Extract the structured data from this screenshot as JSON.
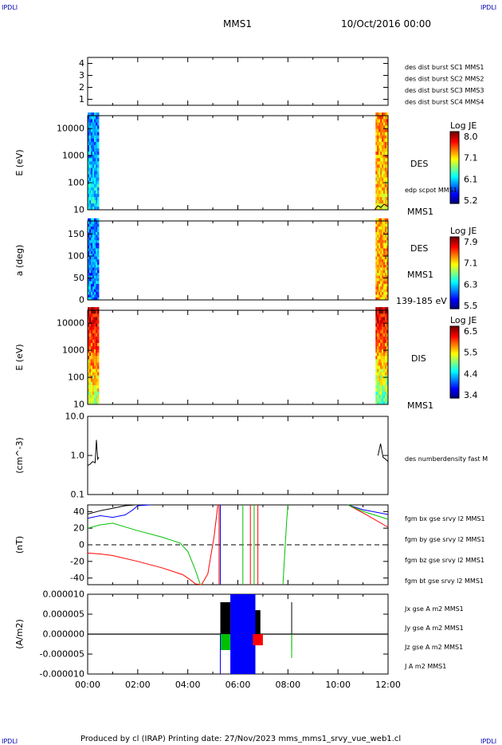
{
  "header": {
    "corner_label": "IPDLI",
    "title": "MMS1",
    "date": "10/Oct/2016 00:00"
  },
  "footer": {
    "credit": "Produced by cl (IRAP)   Printing date: 27/Nov/2023   mms_mms1_srvy_vue_web1.cl"
  },
  "colors": {
    "blue": "#0000ff",
    "magenta": "#ff00ff",
    "red": "#ff0000",
    "green": "#00c000",
    "black": "#000000"
  },
  "time_axis": {
    "ticks": [
      "00:00",
      "02:00",
      "04:00",
      "06:00",
      "08:00",
      "10:00",
      "12:00"
    ],
    "range_hours": [
      0,
      12
    ]
  },
  "chart_data": [
    {
      "type": "line",
      "title": "",
      "ylabel": "",
      "ylim": [
        0.5,
        4.5
      ],
      "yticks": [
        "1",
        "2",
        "3",
        "4"
      ],
      "legend": [
        {
          "label": "des dist burst SC1 MMS1",
          "color": "#0000ff"
        },
        {
          "label": "des dist burst SC2 MMS2",
          "color": "#ff00ff"
        },
        {
          "label": "des dist burst SC3 MMS3",
          "color": "#ff0000"
        },
        {
          "label": "des dist burst SC4 MMS4",
          "color": "#00c000"
        }
      ],
      "series": []
    },
    {
      "type": "heatmap",
      "ylabel": "E (eV)",
      "yscale": "log",
      "ylim": [
        10,
        30000
      ],
      "yticks": [
        "10",
        "100",
        "1000",
        "10000"
      ],
      "instrument": "DES",
      "overlay_label": "edp scpot MMS1",
      "spacecraft": "MMS1",
      "colorbar": {
        "title": "Log JE",
        "ticks": [
          "8.0",
          "7.1",
          "6.1",
          "5.2"
        ],
        "range": [
          5.2,
          8.0
        ]
      },
      "data_intervals_hours": [
        [
          0.0,
          0.45
        ],
        [
          11.5,
          12.0
        ]
      ]
    },
    {
      "type": "heatmap",
      "ylabel": "a (deg)",
      "ylim": [
        0,
        180
      ],
      "yticks": [
        "0",
        "50",
        "100",
        "150"
      ],
      "instrument": "DES",
      "spacecraft": "MMS1",
      "energy_range": "139-185 eV",
      "colorbar": {
        "title": "Log JE",
        "ticks": [
          "7.9",
          "7.1",
          "6.3",
          "5.5"
        ],
        "range": [
          5.5,
          7.9
        ]
      },
      "data_intervals_hours": [
        [
          0.0,
          0.45
        ],
        [
          11.5,
          12.0
        ]
      ]
    },
    {
      "type": "heatmap",
      "ylabel": "E (eV)",
      "yscale": "log",
      "ylim": [
        10,
        30000
      ],
      "yticks": [
        "10",
        "100",
        "1000",
        "10000"
      ],
      "instrument": "DIS",
      "spacecraft": "MMS1",
      "colorbar": {
        "title": "Log JE",
        "ticks": [
          "6.5",
          "5.5",
          "4.4",
          "3.4"
        ],
        "range": [
          3.4,
          6.5
        ]
      },
      "data_intervals_hours": [
        [
          0.0,
          0.45
        ],
        [
          11.5,
          12.0
        ]
      ]
    },
    {
      "type": "line",
      "ylabel": "(cm^-3)",
      "yscale": "log",
      "ylim": [
        0.1,
        10.0
      ],
      "yticks": [
        "0.1",
        "1.0",
        "10.0"
      ],
      "series": [
        {
          "name": "des numberdensity fast M",
          "color": "#000000",
          "x": [
            0.0,
            0.1,
            0.2,
            0.3,
            0.35,
            0.4,
            0.45,
            11.6,
            11.7,
            11.8,
            11.9,
            12.0
          ],
          "y": [
            0.55,
            0.6,
            0.7,
            0.65,
            2.5,
            0.8,
            0.9,
            1.0,
            2.0,
            0.9,
            0.8,
            0.7
          ]
        }
      ]
    },
    {
      "type": "line",
      "ylabel": "(nT)",
      "ylim": [
        -48,
        48
      ],
      "yticks": [
        "-40",
        "-20",
        "0",
        "20",
        "40"
      ],
      "zero_line": "dashed",
      "series": [
        {
          "name": "fgm bx gse srvy l2 MMS1",
          "color": "#ff0000",
          "x": [
            0.0,
            0.5,
            1.0,
            2.0,
            3.0,
            3.8,
            4.1,
            4.3,
            4.55,
            4.8,
            5.05,
            5.2
          ],
          "y": [
            -10,
            -11,
            -13,
            -20,
            -28,
            -36,
            -42,
            -47,
            -48,
            -35,
            10,
            48
          ]
        },
        {
          "name": "fgm by gse srvy l2 MMS1",
          "color": "#00c000",
          "x": [
            0.0,
            0.5,
            1.0,
            2.0,
            3.0,
            3.7,
            4.0,
            4.3,
            4.5
          ],
          "y": [
            20,
            24,
            26,
            17,
            9,
            2,
            -8,
            -30,
            -48
          ]
        },
        {
          "name": "fgm bz gse srvy l2 MMS1",
          "color": "#0000ff",
          "x": [
            0.0,
            0.5,
            1.0,
            1.5,
            1.8,
            2.0,
            2.5
          ],
          "y": [
            32,
            35,
            33,
            36,
            42,
            47,
            48
          ]
        },
        {
          "name": "fgm bt gse srvy l2 MMS1",
          "color": "#000000",
          "x": [
            0.0,
            0.5,
            1.0,
            1.5,
            1.9
          ],
          "y": [
            37,
            41,
            44,
            47,
            48
          ]
        }
      ]
    },
    {
      "type": "line",
      "ylabel": "(A/m2)",
      "ylim": [
        -1e-05,
        1e-05
      ],
      "yticks": [
        "-0.000010",
        "-0.000005",
        "0.000000",
        "0.000005",
        "0.000010"
      ],
      "series": [
        {
          "name": "Jx gse A m2 MMS1",
          "color": "#ff0000"
        },
        {
          "name": "Jy gse A m2 MMS1",
          "color": "#00c000"
        },
        {
          "name": "Jz gse A m2 MMS1",
          "color": "#0000ff"
        },
        {
          "name": "J A m2 MMS1",
          "color": "#000000"
        }
      ]
    }
  ]
}
